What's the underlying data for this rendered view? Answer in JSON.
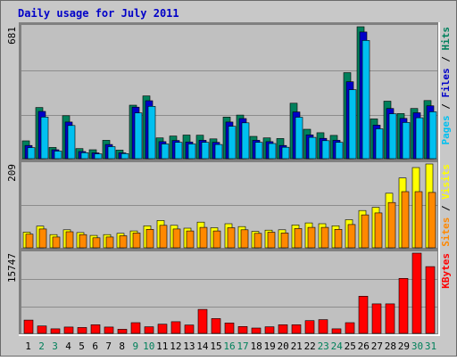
{
  "chart_data": {
    "type": "bar",
    "title": "Daily usage for July 2011",
    "categories": [
      "1",
      "2",
      "3",
      "4",
      "5",
      "6",
      "7",
      "8",
      "9",
      "10",
      "11",
      "12",
      "13",
      "14",
      "15",
      "16",
      "17",
      "18",
      "19",
      "20",
      "21",
      "22",
      "23",
      "24",
      "25",
      "26",
      "27",
      "28",
      "29",
      "30",
      "31"
    ],
    "weekend_days": [
      "2",
      "3",
      "9",
      "10",
      "16",
      "17",
      "23",
      "24",
      "30",
      "31"
    ],
    "panels": [
      {
        "id": "hits",
        "max_label": "681",
        "ylim": [
          0,
          681
        ],
        "legend": [
          "Pages",
          "/",
          "Files",
          "/",
          "Hits"
        ],
        "series": [
          {
            "name": "Hits",
            "values": [
              92,
              264,
              58,
              222,
              52,
              46,
              95,
              44,
              276,
              324,
              107,
              117,
              122,
              121,
              102,
              215,
              225,
              115,
              107,
              104,
              286,
              152,
              134,
              120,
              444,
              681,
              205,
              297,
              233,
              259,
              300
            ]
          },
          {
            "name": "Files",
            "values": [
              68,
              244,
              46,
              189,
              37,
              30,
              73,
              30,
              266,
              299,
              88,
              94,
              86,
              95,
              84,
              189,
              207,
              95,
              88,
              68,
              241,
              123,
              105,
              95,
              397,
              654,
              173,
              259,
              208,
              237,
              273
            ]
          },
          {
            "name": "Pages",
            "values": [
              57,
              215,
              39,
              171,
              31,
              25,
              62,
              26,
              236,
              270,
              76,
              84,
              76,
              84,
              73,
              167,
              185,
              84,
              78,
              59,
              214,
              110,
              93,
              84,
              356,
              610,
              154,
              232,
              187,
              211,
              242
            ]
          }
        ]
      },
      {
        "id": "visits",
        "max_label": "209",
        "ylim": [
          0,
          209
        ],
        "legend": [
          "Sites",
          "/",
          "Visits"
        ],
        "series": [
          {
            "name": "Visits",
            "values": [
              39,
              54,
              33,
              45,
              38,
              31,
              33,
              36,
              42,
              55,
              68,
              56,
              49,
              64,
              50,
              60,
              53,
              41,
              44,
              45,
              57,
              62,
              60,
              55,
              70,
              93,
              101,
              136,
              174,
              200,
              209
            ]
          },
          {
            "name": "Sites",
            "values": [
              34,
              47,
              27,
              40,
              33,
              25,
              27,
              30,
              37,
              46,
              56,
              47,
              42,
              51,
              42,
              50,
              45,
              36,
              39,
              37,
              48,
              51,
              51,
              46,
              58,
              82,
              87,
              113,
              140,
              140,
              138
            ]
          }
        ]
      },
      {
        "id": "kbytes",
        "max_label": "15747",
        "ylim": [
          0,
          15747
        ],
        "legend": [
          "KBytes"
        ],
        "series": [
          {
            "name": "KBytes",
            "values": [
              2600,
              1450,
              900,
              1250,
              1150,
              1700,
              1250,
              800,
              2100,
              1300,
              1800,
              2300,
              1650,
              4700,
              2900,
              2050,
              1350,
              1050,
              1300,
              1700,
              1700,
              2500,
              2700,
              900,
              2100,
              7300,
              5800,
              5800,
              10800,
              15747,
              13100
            ]
          }
        ]
      }
    ],
    "colors": {
      "border": "#6a6a6a",
      "frame_light": "#ffffff",
      "plot_bg": "#c0c0c0",
      "grid": "#8c8c8c",
      "title": "#0000c8",
      "weekday_label": "#000000",
      "weekend_label": "#00805a",
      "Hits": "#00805c",
      "Files": "#0000c8",
      "Pages": "#00c0f0",
      "Visits": "#ffff00",
      "Sites": "#ff8800",
      "KBytes": "#ff0000",
      "slash": "#000000"
    }
  }
}
